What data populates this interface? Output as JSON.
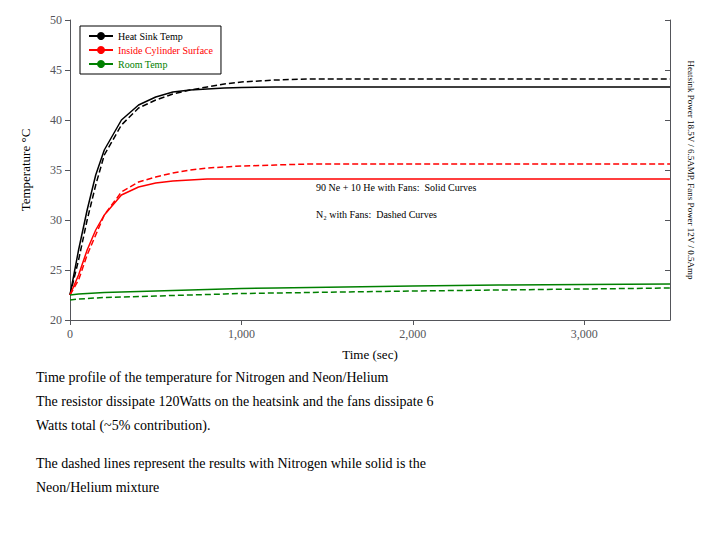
{
  "chart_data": {
    "type": "line",
    "xlabel": "Time (sec)",
    "ylabel": "Temperature °C",
    "y2label": "Heatsink Power 18.5V / 6.5AMP, Fans Power 12V / 0.5Amp",
    "xlim": [
      0,
      3500
    ],
    "ylim": [
      20,
      50
    ],
    "xticks": [
      0,
      1000,
      2000,
      3000
    ],
    "yticks": [
      20,
      25,
      30,
      35,
      40,
      45,
      50
    ],
    "grid": false,
    "legend": "upper left",
    "annotations": [
      "90 Ne + 10 He with Fans:  Solid Curves",
      "N₂ with Fans:  Dashed Curves"
    ],
    "caption": [
      [
        "Time profile of the temperature for Nitrogen and Neon/Helium",
        "The resistor dissipate 120Watts on the heatsink and the fans dissipate 6",
        "Watts total (~5% contribution)."
      ],
      [
        "The dashed lines represent the results with Nitrogen while solid is the",
        "Neon/Helium mixture"
      ]
    ],
    "x": [
      0,
      50,
      100,
      150,
      200,
      300,
      400,
      500,
      600,
      700,
      800,
      900,
      1000,
      1200,
      1400,
      1600,
      1800,
      2000,
      2500,
      3000,
      3500
    ],
    "series": [
      {
        "name": "Heat Sink Temp",
        "color": "black",
        "line_style": "solid",
        "values": [
          22.5,
          27,
          31,
          34.5,
          37,
          40,
          41.5,
          42.3,
          42.8,
          43.0,
          43.1,
          43.2,
          43.25,
          43.3,
          43.3,
          43.3,
          43.3,
          43.3,
          43.3,
          43.3,
          43.3
        ]
      },
      {
        "name": "Heat Sink Temp",
        "color": "black",
        "line_style": "dashed",
        "values": [
          22.5,
          26,
          30,
          33.5,
          36.5,
          39.5,
          41.2,
          42.0,
          42.6,
          43.0,
          43.3,
          43.6,
          43.8,
          44.0,
          44.1,
          44.1,
          44.1,
          44.1,
          44.1,
          44.1,
          44.1
        ]
      },
      {
        "name": "Inside Cylinder Surface",
        "color": "red",
        "line_style": "solid",
        "values": [
          22.5,
          24.5,
          27,
          29.0,
          30.5,
          32.5,
          33.3,
          33.7,
          33.9,
          34.0,
          34.1,
          34.1,
          34.1,
          34.1,
          34.1,
          34.1,
          34.1,
          34.1,
          34.1,
          34.1,
          34.1
        ]
      },
      {
        "name": "Inside Cylinder Surface",
        "color": "red",
        "line_style": "dashed",
        "values": [
          22.5,
          24.0,
          26.5,
          28.5,
          30.5,
          32.8,
          33.8,
          34.3,
          34.7,
          35.0,
          35.2,
          35.3,
          35.4,
          35.5,
          35.6,
          35.6,
          35.6,
          35.6,
          35.6,
          35.6,
          35.6
        ]
      },
      {
        "name": "Room Temp",
        "color": "green",
        "line_style": "solid",
        "values": [
          22.5,
          22.6,
          22.65,
          22.7,
          22.75,
          22.8,
          22.85,
          22.9,
          22.95,
          23.0,
          23.05,
          23.1,
          23.15,
          23.2,
          23.25,
          23.3,
          23.35,
          23.4,
          23.5,
          23.55,
          23.6
        ]
      },
      {
        "name": "Room Temp",
        "color": "green",
        "line_style": "dashed",
        "values": [
          22.0,
          22.1,
          22.15,
          22.2,
          22.25,
          22.3,
          22.35,
          22.4,
          22.45,
          22.5,
          22.55,
          22.6,
          22.65,
          22.7,
          22.75,
          22.8,
          22.85,
          22.9,
          23.0,
          23.1,
          23.2
        ]
      }
    ]
  }
}
